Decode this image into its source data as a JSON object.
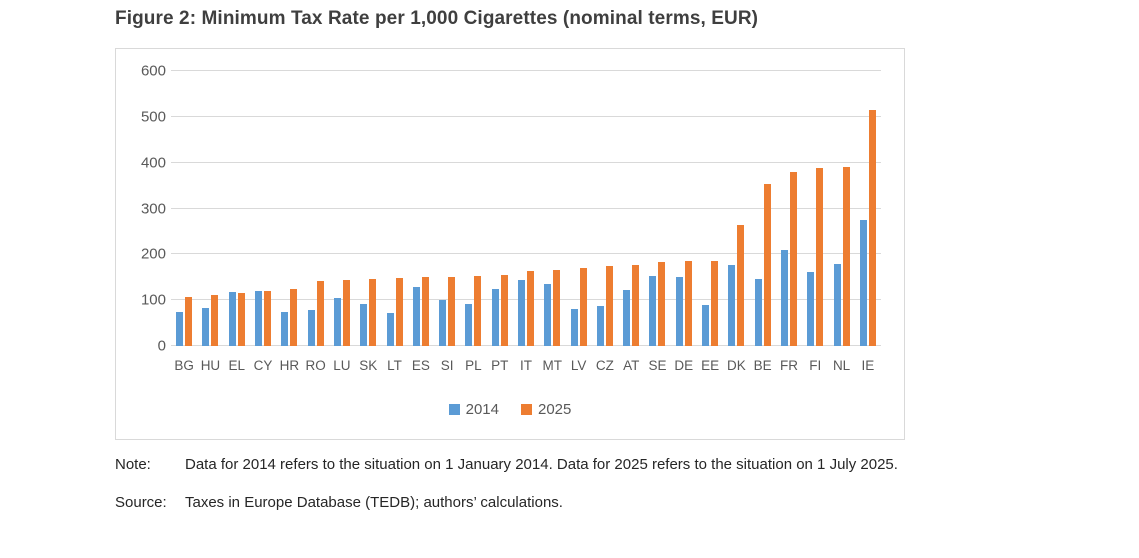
{
  "figure": {
    "title": "Figure 2: Minimum Tax Rate per 1,000 Cigarettes (nominal terms, EUR)",
    "note_label": "Note:",
    "note_text": "Data for 2014 refers to the situation on 1 January 2014. Data for 2025 refers to the situation on 1 July 2025.",
    "source_label": "Source:",
    "source_text": "Taxes in Europe Database (TEDB); authors’ calculations."
  },
  "colors": {
    "series_2014": "#5b9bd5",
    "series_2025": "#ed7d31",
    "gridline": "#d9d9d9",
    "chart_border": "#d9d9d9",
    "axis_text": "#595959",
    "title_text": "#3f3f3f",
    "caption_text": "#262626"
  },
  "chart_data": {
    "type": "bar",
    "title": "Minimum Tax Rate per 1,000 Cigarettes (nominal terms, EUR)",
    "xlabel": "",
    "ylabel": "",
    "ylim": [
      0,
      600
    ],
    "yticks": [
      0,
      100,
      200,
      300,
      400,
      500,
      600
    ],
    "grid": true,
    "legend_position": "bottom",
    "categories": [
      "BG",
      "HU",
      "EL",
      "CY",
      "HR",
      "RO",
      "LU",
      "SK",
      "LT",
      "ES",
      "SI",
      "PL",
      "PT",
      "IT",
      "MT",
      "LV",
      "CZ",
      "AT",
      "SE",
      "DE",
      "EE",
      "DK",
      "BE",
      "FR",
      "FI",
      "NL",
      "IE"
    ],
    "series": [
      {
        "name": "2014",
        "color": "#5b9bd5",
        "values": [
          75,
          84,
          117,
          120,
          75,
          79,
          105,
          91,
          71,
          128,
          100,
          92,
          125,
          143,
          135,
          80,
          87,
          122,
          152,
          150,
          90,
          177,
          147,
          210,
          161,
          178,
          276
        ]
      },
      {
        "name": "2025",
        "color": "#ed7d31",
        "values": [
          108,
          112,
          116,
          121,
          125,
          141,
          144,
          147,
          149,
          150,
          150,
          153,
          156,
          163,
          165,
          170,
          174,
          177,
          183,
          185,
          185,
          263,
          353,
          380,
          389,
          390,
          514
        ]
      }
    ]
  }
}
